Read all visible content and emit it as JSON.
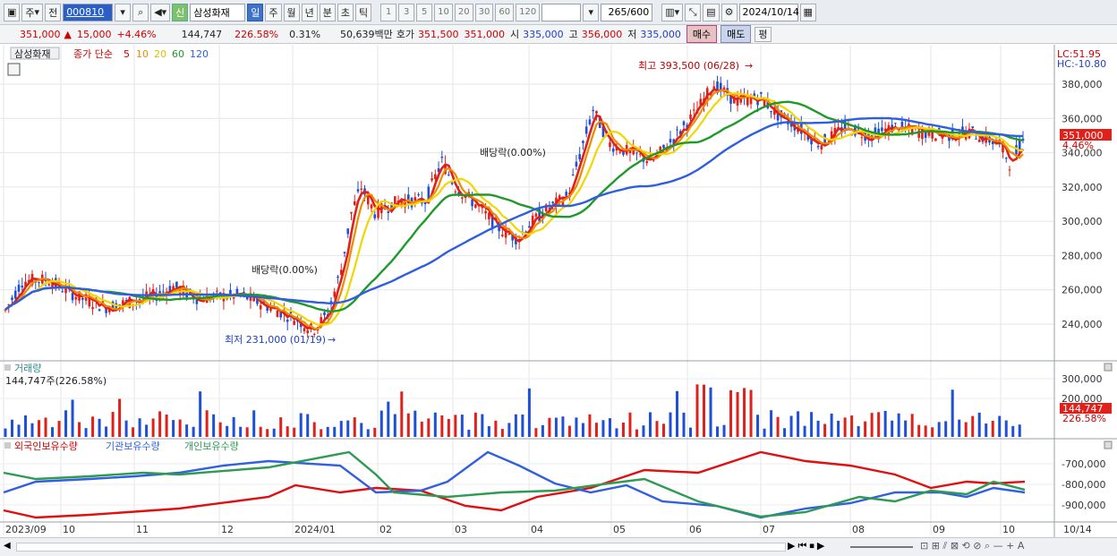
{
  "toolbar": {
    "period_select": "주",
    "prev_label": "전",
    "code": "000810",
    "credit_tag": "신",
    "name": "삼성화재",
    "periods": [
      "일",
      "주",
      "월",
      "년",
      "분",
      "초",
      "틱"
    ],
    "active_period": "일",
    "intervals": [
      "1",
      "3",
      "5",
      "10",
      "20",
      "30",
      "60",
      "120"
    ],
    "count": "265",
    "count_max": "/600",
    "date": "2024/10/14"
  },
  "quote": {
    "price": "351,000",
    "arrow": "▲",
    "change": "15,000",
    "change_pct": "+4.46%",
    "volume": "144,747",
    "volume_ratio": "226.58%",
    "turnover": "0.31%",
    "amount": "50,639백만",
    "bid_label": "호가",
    "ask": "351,500",
    "bid": "351,000",
    "open_label": "시",
    "open": "335,000",
    "high_label": "고",
    "high": "356,000",
    "low_label": "저",
    "low": "335,000",
    "buy_label": "매수",
    "sell_label": "매도",
    "eval_label": "평"
  },
  "price_panel": {
    "name_tag": "삼성화재",
    "ma_label": "종가 단순",
    "ma_periods": [
      "5",
      "10",
      "20",
      "60",
      "120"
    ],
    "lc": "LC:51.95",
    "hc": "HC:-10.80",
    "current_price": "351,000",
    "current_pct": "4.46%",
    "annot_high": "최고 393,500 (06/28)",
    "annot_low": "최저 231,000 (01/19)",
    "annot_div1": "배당락(0.00%)",
    "annot_div2": "배당락(0.00%)",
    "y_ticks": [
      "380,000",
      "360,000",
      "340,000",
      "320,000",
      "300,000",
      "280,000",
      "260,000",
      "240,000"
    ]
  },
  "volume_panel": {
    "title": "거래량",
    "value": "144,747주(226.58%)",
    "y_ticks": [
      "300,000",
      "200,000"
    ],
    "current": "144,747",
    "current_pct": "226.58%"
  },
  "holdings_panel": {
    "legend": [
      "외국인보유수량",
      "기관보유수량",
      "개인보유수량"
    ],
    "y_ticks": [
      "-700,000",
      "-800,000",
      "-900,000"
    ]
  },
  "x_axis": [
    "2023/09",
    "10",
    "11",
    "12",
    "2024/01",
    "02",
    "03",
    "04",
    "05",
    "06",
    "07",
    "08",
    "09",
    "10",
    "10/14"
  ],
  "colors": {
    "up": "#e0201a",
    "down": "#1d4fd8",
    "ma5": "#e0201a",
    "ma10": "#f08a00",
    "ma20": "#f2d600",
    "ma60": "#1f9a2a",
    "ma120": "#2f5de0",
    "foreign": "#e01010",
    "inst": "#3060e0",
    "indiv": "#2e9a52"
  }
}
